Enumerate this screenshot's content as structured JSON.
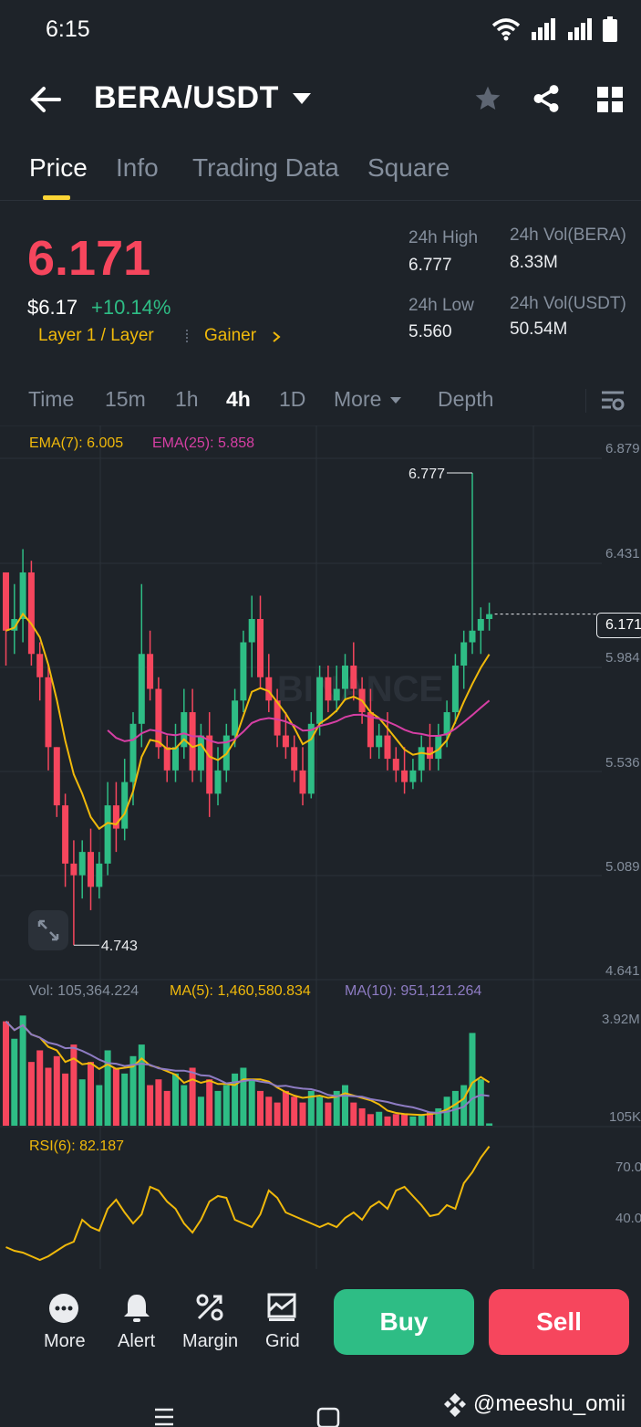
{
  "status_bar": {
    "time": "6:15"
  },
  "header": {
    "pair": "BERA/USDT"
  },
  "tabs": [
    {
      "label": "Price",
      "active": true
    },
    {
      "label": "Info"
    },
    {
      "label": "Trading Data"
    },
    {
      "label": "Square"
    }
  ],
  "ticker": {
    "last_price": "6.171",
    "usd_price": "$6.17",
    "change_pct": "+10.14%",
    "tag_category": "Layer 1 / Layer",
    "tag_rank": "Gainer",
    "high_label": "24h High",
    "high": "6.777",
    "low_label": "24h Low",
    "low": "5.560",
    "vol_base_label": "24h Vol(BERA)",
    "vol_base": "8.33M",
    "vol_quote_label": "24h Vol(USDT)",
    "vol_quote": "50.54M"
  },
  "timeframes": [
    "Time",
    "15m",
    "1h",
    "4h",
    "1D",
    "More",
    "Depth"
  ],
  "active_timeframe": "4h",
  "indicators": {
    "ema7": "EMA(7): 6.005",
    "ema25": "EMA(25): 5.858",
    "vol": "Vol: 105,364.224",
    "ma5": "MA(5): 1,460,580.834",
    "ma10": "MA(10): 951,121.264",
    "rsi": "RSI(6): 82.187"
  },
  "price_axis": [
    "6.879",
    "6.431",
    "5.984",
    "5.536",
    "5.089",
    "4.641"
  ],
  "current_price_tag": "6.171",
  "high_marker": "6.777",
  "low_marker": "4.743",
  "vol_axis": [
    "3.92M",
    "105K"
  ],
  "rsi_axis": [
    "70.0",
    "40.0"
  ],
  "watermark": "BINANCE",
  "bottom_nav": [
    "More",
    "Alert",
    "Margin",
    "Grid"
  ],
  "buy_label": "Buy",
  "sell_label": "Sell",
  "user_watermark": "@meeshu_omii",
  "colors": {
    "up": "#2ebd85",
    "down": "#f6465d",
    "accent": "#fcd535",
    "bg": "#1e2329"
  },
  "chart_data": {
    "type": "candlestick",
    "interval": "4h",
    "ylim": [
      4.641,
      6.879
    ],
    "candles": [
      [
        6.35,
        6.35,
        5.95,
        6.1
      ],
      [
        6.1,
        6.3,
        6.0,
        6.15
      ],
      [
        6.15,
        6.45,
        6.05,
        6.35
      ],
      [
        6.35,
        6.4,
        5.95,
        6.0
      ],
      [
        6.0,
        6.05,
        5.8,
        5.9
      ],
      [
        5.9,
        5.95,
        5.5,
        5.6
      ],
      [
        5.6,
        5.6,
        5.3,
        5.35
      ],
      [
        5.35,
        5.4,
        5.0,
        5.1
      ],
      [
        5.1,
        5.2,
        4.75,
        5.05
      ],
      [
        5.05,
        5.2,
        4.95,
        5.15
      ],
      [
        5.15,
        5.25,
        4.9,
        5.0
      ],
      [
        5.0,
        5.15,
        4.95,
        5.1
      ],
      [
        5.1,
        5.45,
        5.05,
        5.35
      ],
      [
        5.35,
        5.45,
        5.15,
        5.25
      ],
      [
        5.25,
        5.55,
        5.2,
        5.45
      ],
      [
        5.45,
        5.75,
        5.35,
        5.7
      ],
      [
        5.7,
        6.3,
        5.6,
        6.0
      ],
      [
        6.0,
        6.1,
        5.8,
        5.85
      ],
      [
        5.85,
        5.9,
        5.55,
        5.6
      ],
      [
        5.6,
        5.65,
        5.45,
        5.5
      ],
      [
        5.5,
        5.7,
        5.45,
        5.6
      ],
      [
        5.6,
        5.85,
        5.55,
        5.75
      ],
      [
        5.75,
        5.85,
        5.45,
        5.5
      ],
      [
        5.5,
        5.7,
        5.45,
        5.65
      ],
      [
        5.65,
        5.75,
        5.3,
        5.4
      ],
      [
        5.4,
        5.6,
        5.35,
        5.5
      ],
      [
        5.5,
        5.7,
        5.45,
        5.65
      ],
      [
        5.65,
        5.85,
        5.6,
        5.8
      ],
      [
        5.8,
        6.1,
        5.75,
        6.05
      ],
      [
        6.05,
        6.25,
        5.9,
        6.15
      ],
      [
        6.15,
        6.25,
        5.85,
        5.9
      ],
      [
        5.9,
        6.0,
        5.75,
        5.8
      ],
      [
        5.8,
        5.85,
        5.6,
        5.65
      ],
      [
        5.65,
        5.75,
        5.55,
        5.6
      ],
      [
        5.6,
        5.65,
        5.45,
        5.5
      ],
      [
        5.5,
        5.6,
        5.35,
        5.4
      ],
      [
        5.4,
        5.75,
        5.38,
        5.7
      ],
      [
        5.7,
        5.95,
        5.65,
        5.9
      ],
      [
        5.9,
        5.95,
        5.75,
        5.8
      ],
      [
        5.8,
        5.95,
        5.75,
        5.85
      ],
      [
        5.85,
        6.0,
        5.8,
        5.95
      ],
      [
        5.95,
        6.05,
        5.8,
        5.85
      ],
      [
        5.85,
        5.9,
        5.7,
        5.75
      ],
      [
        5.75,
        5.85,
        5.55,
        5.6
      ],
      [
        5.6,
        5.7,
        5.55,
        5.65
      ],
      [
        5.65,
        5.75,
        5.5,
        5.55
      ],
      [
        5.55,
        5.6,
        5.45,
        5.5
      ],
      [
        5.5,
        5.6,
        5.4,
        5.45
      ],
      [
        5.45,
        5.55,
        5.42,
        5.5
      ],
      [
        5.5,
        5.65,
        5.45,
        5.6
      ],
      [
        5.6,
        5.7,
        5.5,
        5.55
      ],
      [
        5.55,
        5.7,
        5.5,
        5.65
      ],
      [
        5.65,
        5.8,
        5.6,
        5.75
      ],
      [
        5.75,
        6.0,
        5.7,
        5.95
      ],
      [
        5.95,
        6.1,
        5.85,
        6.05
      ],
      [
        6.05,
        6.777,
        6.0,
        6.1
      ],
      [
        6.1,
        6.2,
        6.0,
        6.15
      ],
      [
        6.15,
        6.22,
        6.1,
        6.171
      ]
    ],
    "volume_ratio": [
      0.9,
      0.75,
      0.95,
      0.55,
      0.65,
      0.5,
      0.6,
      0.45,
      0.7,
      0.4,
      0.55,
      0.35,
      0.65,
      0.5,
      0.45,
      0.6,
      0.7,
      0.35,
      0.4,
      0.3,
      0.45,
      0.35,
      0.5,
      0.25,
      0.4,
      0.3,
      0.35,
      0.45,
      0.5,
      0.4,
      0.3,
      0.25,
      0.2,
      0.3,
      0.25,
      0.2,
      0.3,
      0.25,
      0.2,
      0.3,
      0.35,
      0.2,
      0.15,
      0.1,
      0.12,
      0.08,
      0.1,
      0.1,
      0.08,
      0.1,
      0.12,
      0.15,
      0.25,
      0.3,
      0.35,
      0.8,
      0.4,
      0.02
    ],
    "rsi": [
      27,
      25,
      24,
      22,
      20,
      22,
      25,
      28,
      30,
      42,
      38,
      36,
      48,
      53,
      46,
      40,
      45,
      60,
      58,
      52,
      48,
      40,
      35,
      42,
      52,
      55,
      54,
      42,
      40,
      38,
      45,
      58,
      54,
      46,
      44,
      42,
      40,
      38,
      40,
      38,
      43,
      46,
      42,
      49,
      52,
      48,
      58,
      60,
      55,
      50,
      44,
      45,
      50,
      48,
      62,
      68,
      76,
      82.187
    ]
  }
}
